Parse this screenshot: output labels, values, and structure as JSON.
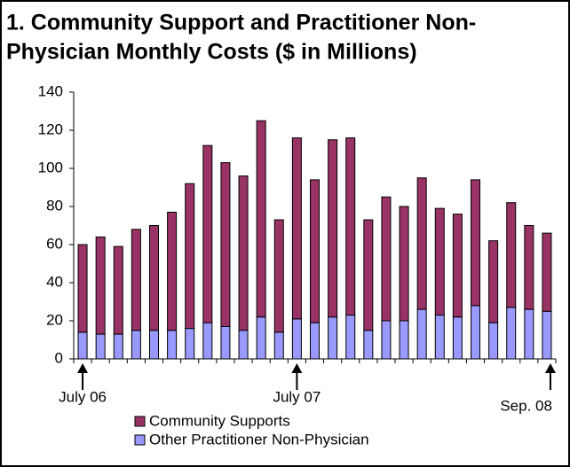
{
  "chart_data": {
    "type": "stacked-bar",
    "title": [
      "1.  Community Support and Practitioner Non-",
      "Physician Monthly Costs ($ in Millions)"
    ],
    "categories": [
      "July 06",
      null,
      null,
      null,
      null,
      null,
      null,
      null,
      null,
      null,
      null,
      null,
      "July 07",
      null,
      null,
      null,
      null,
      null,
      null,
      null,
      null,
      null,
      null,
      null,
      null,
      null,
      "Sep. 08"
    ],
    "series": [
      {
        "name": "Community Supports",
        "color": "#993366",
        "values": [
          46,
          51,
          46,
          53,
          55,
          62,
          76,
          93,
          86,
          81,
          103,
          59,
          95,
          75,
          93,
          93,
          58,
          65,
          60,
          69,
          56,
          54,
          66,
          43,
          55,
          44,
          41
        ]
      },
      {
        "name": "Other Practitioner Non-Physician",
        "color": "#9999ff",
        "values": [
          14,
          13,
          13,
          15,
          15,
          15,
          16,
          19,
          17,
          15,
          22,
          14,
          21,
          19,
          22,
          23,
          15,
          20,
          20,
          26,
          23,
          22,
          28,
          19,
          27,
          26,
          25
        ]
      }
    ],
    "ylim": [
      0,
      140
    ],
    "yticks": [
      0,
      20,
      40,
      60,
      80,
      100,
      120,
      140
    ],
    "grid": false
  }
}
